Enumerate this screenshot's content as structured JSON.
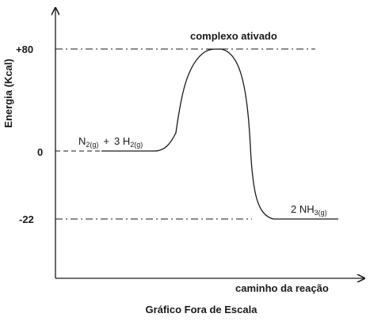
{
  "diagram": {
    "y_axis_label": "Energia (Kcal)",
    "x_axis_label": "caminho da reação",
    "caption": "Gráfico Fora de Escala",
    "transition_state_label": "complexo ativado",
    "reactants": {
      "species1_base": "N",
      "species1_sub": "2(g)",
      "operator": "+",
      "species2_base": "3 H",
      "species2_sub": "2(g)"
    },
    "products": {
      "base": "2 NH",
      "sub": "3(g)"
    },
    "levels": {
      "top_label": "+80",
      "mid_label": "0",
      "bottom_label": "-22"
    }
  },
  "chart_data": {
    "type": "line",
    "title": "",
    "xlabel": "caminho da reação",
    "ylabel": "Energia (Kcal)",
    "y_ticks": [
      80,
      0,
      -22
    ],
    "reactant_energy": 0,
    "activated_complex_energy": 80,
    "product_energy": -22
  }
}
